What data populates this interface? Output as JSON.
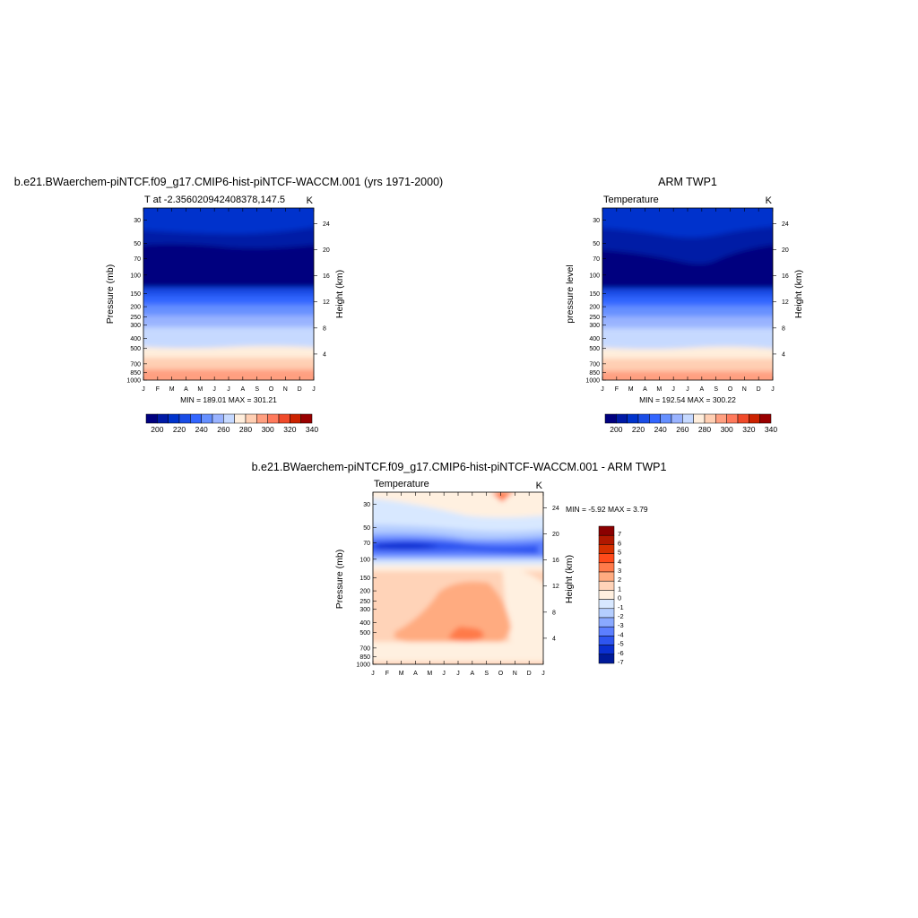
{
  "chart_data": [
    {
      "type": "heatmap",
      "title": "b.e21.BWaerchem-piNTCF.f09_g17.CMIP6-hist-piNTCF-WACCM.001 (yrs 1971-2000)",
      "subtitle_left": "T at -2.356020942408378,147.5",
      "subtitle_right": "K",
      "ylabel": "Pressure (mb)",
      "ylabel_right": "Height (km)",
      "minmax_text": "MIN = 189.01 MAX = 301.21",
      "x_ticks": [
        "J",
        "F",
        "M",
        "A",
        "M",
        "J",
        "J",
        "A",
        "S",
        "O",
        "N",
        "D",
        "J"
      ],
      "y_ticks": [
        "30",
        "50",
        "70",
        "100",
        "150",
        "200",
        "250",
        "300",
        "400",
        "500",
        "700",
        "850",
        "1000"
      ],
      "y_right_ticks": [
        "24",
        "20",
        "16",
        "12",
        "8",
        "4"
      ],
      "colorbar_labels": [
        "200",
        "220",
        "240",
        "260",
        "280",
        "300",
        "320",
        "340"
      ]
    },
    {
      "type": "heatmap",
      "title": "ARM TWP1",
      "subtitle_left": "Temperature",
      "subtitle_right": "K",
      "ylabel": "pressure level",
      "ylabel_right": "Height (km)",
      "minmax_text": "MIN = 192.54 MAX = 300.22",
      "x_ticks": [
        "J",
        "F",
        "M",
        "A",
        "M",
        "J",
        "J",
        "A",
        "S",
        "O",
        "N",
        "D",
        "J"
      ],
      "y_ticks": [
        "30",
        "50",
        "70",
        "100",
        "150",
        "200",
        "250",
        "300",
        "400",
        "500",
        "700",
        "850",
        "1000"
      ],
      "y_right_ticks": [
        "24",
        "20",
        "16",
        "12",
        "8",
        "4"
      ],
      "colorbar_labels": [
        "200",
        "220",
        "240",
        "260",
        "280",
        "300",
        "320",
        "340"
      ]
    },
    {
      "type": "heatmap",
      "title": "b.e21.BWaerchem-piNTCF.f09_g17.CMIP6-hist-piNTCF-WACCM.001 - ARM TWP1",
      "subtitle_left": "Temperature",
      "subtitle_right": "K",
      "ylabel": "Pressure (mb)",
      "ylabel_right": "Height (km)",
      "minmax_text": "MIN =  -5.92 MAX =   3.79",
      "x_ticks": [
        "J",
        "F",
        "M",
        "A",
        "M",
        "J",
        "J",
        "A",
        "S",
        "O",
        "N",
        "D",
        "J"
      ],
      "y_ticks": [
        "30",
        "50",
        "70",
        "100",
        "150",
        "200",
        "250",
        "300",
        "400",
        "500",
        "700",
        "850",
        "1000"
      ],
      "y_right_ticks": [
        "24",
        "20",
        "16",
        "12",
        "8",
        "4"
      ],
      "colorbar_labels": [
        "7",
        "6",
        "5",
        "4",
        "3",
        "2",
        "1",
        "0",
        "-1",
        "-2",
        "-3",
        "-4",
        "-5",
        "-6",
        "-7"
      ]
    }
  ],
  "palette": {
    "temperature": [
      "#00007f",
      "#001aa6",
      "#0033cc",
      "#1a4de6",
      "#3366ff",
      "#6690ff",
      "#99b3ff",
      "#c6d9ff",
      "#ffeedc",
      "#ffcfb3",
      "#ff9f80",
      "#ff7a5c",
      "#f04a2a",
      "#cc2200",
      "#990000"
    ],
    "difference": [
      "#8b0000",
      "#b01800",
      "#d63000",
      "#ff4a1a",
      "#ff7a4a",
      "#ffab80",
      "#ffd3b8",
      "#fff0e0",
      "#d8e8ff",
      "#b5ceff",
      "#8aa9ff",
      "#5c7fff",
      "#2e55f0",
      "#0a2fd0",
      "#001a99"
    ]
  }
}
